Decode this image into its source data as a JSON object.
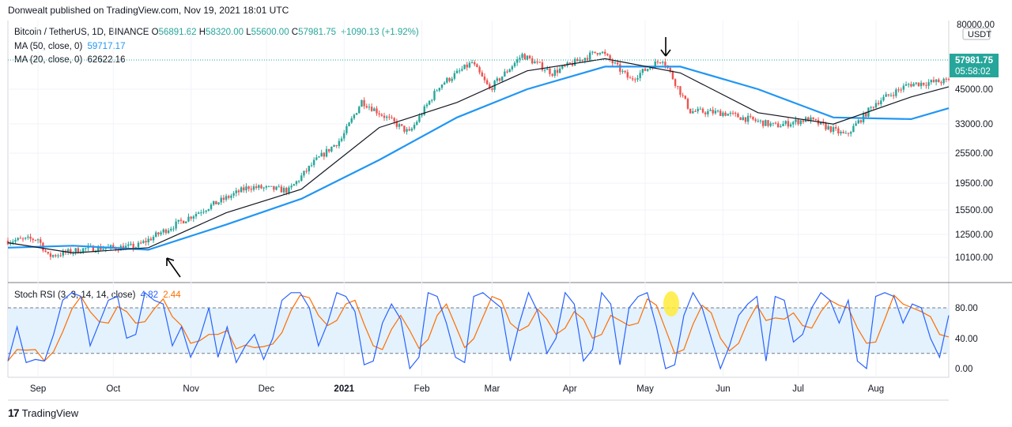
{
  "header": {
    "published_line": "Donwealt published on TradingView.com, Nov 19, 2021 18:01 UTC"
  },
  "footer": {
    "logo_text": "TradingView"
  },
  "colors": {
    "up": "#26a69a",
    "down": "#ef5350",
    "ma50": "#2196f3",
    "ma20": "#131722",
    "stoch_k": "#2962ff",
    "stoch_d": "#ff6d00",
    "band_fill": "#e3f2fd",
    "price_tag": "#26a69a",
    "highlight": "#ffeb3b"
  },
  "legend": {
    "symbol": "Bitcoin / TetherUS, 1D, BINANCE",
    "ohlc": [
      {
        "key": "O",
        "value": "56891.62"
      },
      {
        "key": "H",
        "value": "58320.00"
      },
      {
        "key": "L",
        "value": "55600.00"
      },
      {
        "key": "C",
        "value": "57981.75"
      }
    ],
    "change": "+1090.13 (+1.92%)",
    "ma50_label": "MA (50, close, 0)",
    "ma50_value": "59717.17",
    "ma20_label": "MA (20, close, 0)",
    "ma20_value": "62622.16",
    "stoch_label": "Stoch RSI (3, 3, 14, 14, close)",
    "stoch_k_value": "4.82",
    "stoch_d_value": "2.44"
  },
  "price_axis": {
    "currency": "USDT",
    "top_label": "80000.00",
    "ticks": [
      "45000.00",
      "33000.00",
      "25500.00",
      "19500.00",
      "15500.00",
      "12500.00",
      "10100.00"
    ],
    "last_price": "57981.75",
    "countdown": "05:58:02"
  },
  "stoch_axis": {
    "ticks": [
      "80.00",
      "40.00",
      "0.00"
    ]
  },
  "time_axis": {
    "labels": [
      "Sep",
      "Oct",
      "Nov",
      "Dec",
      "2021",
      "Feb",
      "Mar",
      "Apr",
      "May",
      "Jun",
      "Jul",
      "Aug"
    ]
  },
  "chart_data": {
    "type": "candlestick",
    "symbol": "BTCUSDT",
    "timeframe": "1D",
    "scale": "log",
    "date_range": [
      "2020-08-20",
      "2021-08-30"
    ],
    "price_close_series": [
      {
        "date": "2020-08-20",
        "close": 11700
      },
      {
        "date": "2020-09-01",
        "close": 11900
      },
      {
        "date": "2020-09-05",
        "close": 10200
      },
      {
        "date": "2020-09-20",
        "close": 10900
      },
      {
        "date": "2020-10-10",
        "close": 11100
      },
      {
        "date": "2020-10-22",
        "close": 12900
      },
      {
        "date": "2020-11-05",
        "close": 15300
      },
      {
        "date": "2020-11-24",
        "close": 18900
      },
      {
        "date": "2020-12-10",
        "close": 18300
      },
      {
        "date": "2020-12-20",
        "close": 23500
      },
      {
        "date": "2020-12-31",
        "close": 29000
      },
      {
        "date": "2021-01-08",
        "close": 40500
      },
      {
        "date": "2021-01-27",
        "close": 30500
      },
      {
        "date": "2021-02-08",
        "close": 46500
      },
      {
        "date": "2021-02-21",
        "close": 57000
      },
      {
        "date": "2021-02-28",
        "close": 45000
      },
      {
        "date": "2021-03-13",
        "close": 61000
      },
      {
        "date": "2021-03-25",
        "close": 52000
      },
      {
        "date": "2021-04-13",
        "close": 63500
      },
      {
        "date": "2021-04-25",
        "close": 49000
      },
      {
        "date": "2021-05-08",
        "close": 59000
      },
      {
        "date": "2021-05-19",
        "close": 37000
      },
      {
        "date": "2021-06-01",
        "close": 36500
      },
      {
        "date": "2021-06-22",
        "close": 32500
      },
      {
        "date": "2021-07-05",
        "close": 34500
      },
      {
        "date": "2021-07-20",
        "close": 29800
      },
      {
        "date": "2021-08-01",
        "close": 40000
      },
      {
        "date": "2021-08-14",
        "close": 47000
      },
      {
        "date": "2021-08-30",
        "close": 48500
      }
    ],
    "ma50_series": [
      {
        "date": "2020-08-20",
        "value": 11000
      },
      {
        "date": "2020-09-15",
        "value": 11200
      },
      {
        "date": "2020-10-15",
        "value": 10800
      },
      {
        "date": "2020-11-15",
        "value": 13500
      },
      {
        "date": "2020-12-15",
        "value": 17000
      },
      {
        "date": "2021-01-15",
        "value": 24000
      },
      {
        "date": "2021-02-15",
        "value": 35000
      },
      {
        "date": "2021-03-15",
        "value": 45000
      },
      {
        "date": "2021-04-15",
        "value": 55000
      },
      {
        "date": "2021-05-15",
        "value": 55000
      },
      {
        "date": "2021-06-15",
        "value": 45000
      },
      {
        "date": "2021-07-15",
        "value": 35000
      },
      {
        "date": "2021-08-15",
        "value": 34500
      },
      {
        "date": "2021-08-30",
        "value": 38000
      }
    ],
    "ma20_series": [
      {
        "date": "2020-08-20",
        "value": 11500
      },
      {
        "date": "2020-09-15",
        "value": 10500
      },
      {
        "date": "2020-10-15",
        "value": 11000
      },
      {
        "date": "2020-11-15",
        "value": 15000
      },
      {
        "date": "2020-12-15",
        "value": 18500
      },
      {
        "date": "2021-01-15",
        "value": 32000
      },
      {
        "date": "2021-02-15",
        "value": 40000
      },
      {
        "date": "2021-03-15",
        "value": 53000
      },
      {
        "date": "2021-04-15",
        "value": 59000
      },
      {
        "date": "2021-05-15",
        "value": 52000
      },
      {
        "date": "2021-06-15",
        "value": 36500
      },
      {
        "date": "2021-07-15",
        "value": 33000
      },
      {
        "date": "2021-08-15",
        "value": 42000
      },
      {
        "date": "2021-08-30",
        "value": 46000
      }
    ],
    "stoch_rsi_bands": {
      "upper": 80,
      "lower": 20
    },
    "stoch_rsi_range": [
      0,
      100
    ],
    "stoch_rsi_k_series": [
      10,
      55,
      8,
      12,
      10,
      45,
      90,
      100,
      95,
      30,
      60,
      90,
      95,
      40,
      45,
      100,
      90,
      85,
      30,
      55,
      15,
      40,
      80,
      15,
      55,
      8,
      30,
      45,
      12,
      40,
      90,
      100,
      100,
      80,
      30,
      60,
      100,
      95,
      75,
      5,
      10,
      60,
      85,
      65,
      0,
      15,
      100,
      95,
      60,
      15,
      8,
      95,
      100,
      90,
      80,
      10,
      60,
      100,
      75,
      20,
      40,
      100,
      85,
      10,
      25,
      100,
      85,
      5,
      80,
      95,
      100,
      55,
      0,
      5,
      70,
      100,
      80,
      40,
      0,
      30,
      70,
      85,
      95,
      10,
      95,
      90,
      35,
      45,
      80,
      100,
      90,
      60,
      90,
      10,
      0,
      95,
      100,
      95,
      60,
      85,
      80,
      40,
      15,
      70
    ]
  }
}
